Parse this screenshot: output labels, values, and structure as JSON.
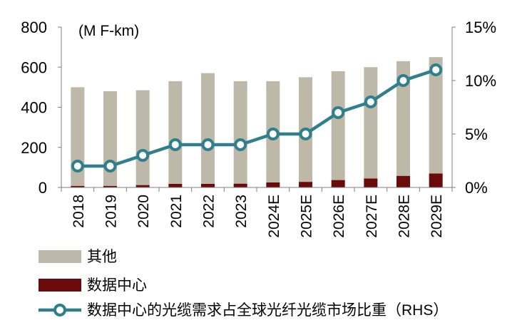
{
  "chart_data": {
    "type": "bar",
    "unit_label": "(M F-km)",
    "categories": [
      "2018",
      "2019",
      "2020",
      "2021",
      "2022",
      "2023",
      "2024E",
      "2025E",
      "2026E",
      "2027E",
      "2028E",
      "2029E"
    ],
    "series": [
      {
        "name": "其他",
        "type": "bar",
        "stack": "total",
        "axis": "left",
        "color": "#BDB8A8",
        "values": [
          492,
          472,
          473,
          512,
          552,
          511,
          505,
          522,
          543,
          555,
          572,
          580
        ]
      },
      {
        "name": "数据中心",
        "type": "bar",
        "stack": "total",
        "axis": "left",
        "color": "#6B0A0A",
        "values": [
          8,
          8,
          12,
          18,
          18,
          19,
          25,
          28,
          37,
          45,
          58,
          70
        ]
      },
      {
        "name": "数据中心的光缆需求占全球光纤光缆市场比重（RHS）",
        "type": "line",
        "axis": "right",
        "color": "#2F7F8C",
        "values": [
          2,
          2,
          3,
          4,
          4,
          4,
          5,
          5,
          7,
          8,
          10,
          11
        ]
      }
    ],
    "y_left": {
      "ylim": [
        0,
        800
      ],
      "ticks": [
        0,
        200,
        400,
        600,
        800
      ],
      "tick_labels": [
        "0",
        "200",
        "400",
        "600",
        "800"
      ]
    },
    "y_right": {
      "ylim": [
        0,
        15
      ],
      "ticks": [
        0,
        5,
        10,
        15
      ],
      "tick_labels": [
        "0%",
        "5%",
        "10%",
        "15%"
      ]
    },
    "grid": false,
    "legend_position": "bottom-left"
  }
}
